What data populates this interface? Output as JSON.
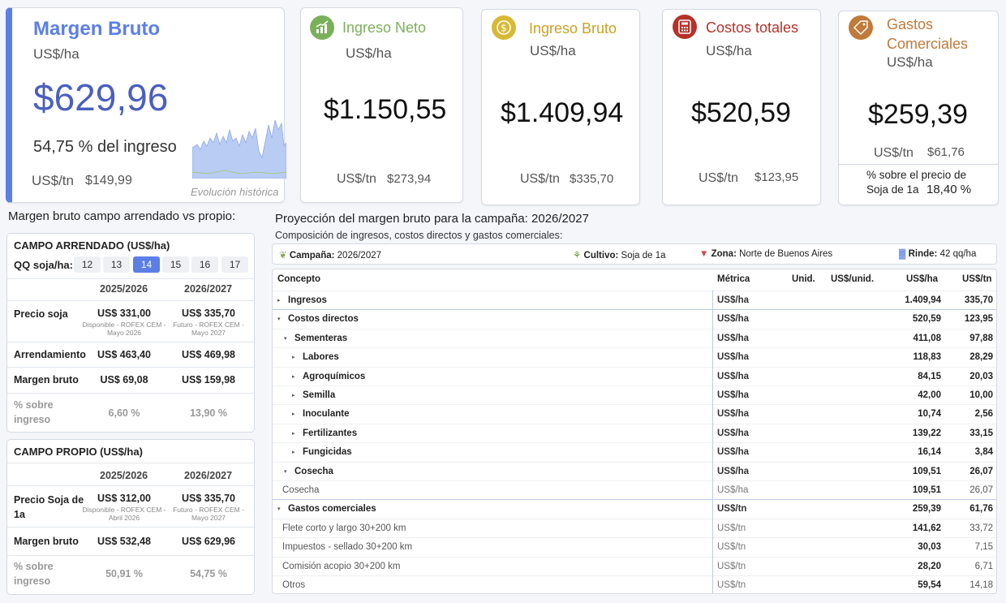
{
  "margen_bruto": {
    "title": "Margen Bruto",
    "unit": "US$/ha",
    "value": "$629,96",
    "pct": "54,75 % del ingreso",
    "tn_label": "US$/tn",
    "tn_value": "$149,99",
    "evolucion": "Evolución histórica",
    "accent": "#5b7fe6"
  },
  "kpis": [
    {
      "title": "Ingreso Neto",
      "unit": "US$/ha",
      "value": "$1.150,55",
      "tn_label": "US$/tn",
      "tn_value": "$273,94",
      "color": "#7bb05a",
      "icon": "chart-up-icon"
    },
    {
      "title": "Ingreso Bruto",
      "unit": "US$/ha",
      "value": "$1.409,94",
      "tn_label": "US$/tn",
      "tn_value": "$335,70",
      "color": "#c9a227",
      "icon": "dollar-coin-icon"
    },
    {
      "title": "Costos totales",
      "unit": "US$/ha",
      "value": "$520,59",
      "tn_label": "US$/tn",
      "tn_value": "$123,95",
      "color": "#b43228",
      "icon": "calculator-icon"
    },
    {
      "title_line1": "Gastos",
      "title_line2": "Comerciales",
      "unit": "US$/ha",
      "value": "$259,39",
      "tn_label": "US$/tn",
      "tn_value": "$61,76",
      "color": "#c07a3a",
      "icon": "tag-icon",
      "pct_label_1": "% sobre el precio de",
      "pct_label_2": "Soja de 1a",
      "pct_value": "18,40 %"
    }
  ],
  "comparativo": {
    "title": "Margen bruto campo arrendado vs propio:",
    "arrendado": {
      "title": "CAMPO ARRENDADO (US$/ha)",
      "qq_label": "QQ soja/ha:",
      "qq_options": [
        "12",
        "13",
        "14",
        "15",
        "16",
        "17"
      ],
      "qq_selected": "14",
      "col1": "2025/2026",
      "col2": "2026/2027",
      "precio_label": "Precio soja",
      "precio_1": "US$ 331,00",
      "precio_1_sub": "Disponible - ROFEX CEM - Mayo 2026",
      "precio_2": "US$ 335,70",
      "precio_2_sub": "Futuro - ROFEX CEM - Mayo 2027",
      "arr_label": "Arrendamiento",
      "arr_1": "US$ 463,40",
      "arr_2": "US$ 469,98",
      "mb_label": "Margen bruto",
      "mb_1": "US$ 69,08",
      "mb_2": "US$ 159,98",
      "pct_label_1": "% sobre",
      "pct_label_2": "ingreso",
      "pct_1": "6,60 %",
      "pct_2": "13,90 %"
    },
    "propio": {
      "title": "CAMPO PROPIO (US$/ha)",
      "col1": "2025/2026",
      "col2": "2026/2027",
      "precio_label_1": "Precio Soja de",
      "precio_label_2": "1a",
      "precio_1": "US$ 312,00",
      "precio_1_sub": "Disponible - ROFEX CEM - Abril 2026",
      "precio_2": "US$ 335,70",
      "precio_2_sub": "Futuro - ROFEX CEM - Mayo 2027",
      "mb_label": "Margen bruto",
      "mb_1": "US$ 532,48",
      "mb_2": "US$ 629,96",
      "pct_label_1": "% sobre",
      "pct_label_2": "ingreso",
      "pct_1": "50,91 %",
      "pct_2": "54,75 %"
    }
  },
  "proyeccion": {
    "title": "Proyección del margen bruto para la campaña: 2026/2027",
    "subtitle": "Composición de ingresos, costos directos y gastos comerciales:",
    "filters": {
      "campana_label": "Campaña:",
      "campana": "2026/2027",
      "cultivo_label": "Cultivo:",
      "cultivo": "Soja de 1a",
      "zona_label": "Zona:",
      "zona": "Norte de Buenos Aires",
      "rinde_label": "Rinde:",
      "rinde": "42 qq/ha"
    },
    "headers": {
      "concepto": "Concepto",
      "metrica": "Métrica",
      "unid": "Unid.",
      "usd_unid": "US$/unid.",
      "usd_ha": "US$/ha",
      "usd_tn": "US$/tn"
    },
    "rows": [
      {
        "label": "Ingresos",
        "metric": "US$/ha",
        "ha": "1.409,94",
        "tn": "335,70",
        "level": 0,
        "tri": "▸",
        "bold": true
      },
      {
        "label": "Costos directos",
        "metric": "US$/ha",
        "ha": "520,59",
        "tn": "123,95",
        "level": 0,
        "tri": "▾",
        "bold": true
      },
      {
        "label": "Sementeras",
        "metric": "US$/ha",
        "ha": "411,08",
        "tn": "97,88",
        "level": 1,
        "tri": "▾",
        "bold": true
      },
      {
        "label": "Labores",
        "metric": "US$/ha",
        "ha": "118,83",
        "tn": "28,29",
        "level": 2,
        "tri": "▸",
        "bold": true
      },
      {
        "label": "Agroquímicos",
        "metric": "US$/ha",
        "ha": "84,15",
        "tn": "20,03",
        "level": 2,
        "tri": "▸",
        "bold": true
      },
      {
        "label": "Semilla",
        "metric": "US$/ha",
        "ha": "42,00",
        "tn": "10,00",
        "level": 2,
        "tri": "▸",
        "bold": true
      },
      {
        "label": "Inoculante",
        "metric": "US$/ha",
        "ha": "10,74",
        "tn": "2,56",
        "level": 2,
        "tri": "▸",
        "bold": true
      },
      {
        "label": "Fertilizantes",
        "metric": "US$/ha",
        "ha": "139,22",
        "tn": "33,15",
        "level": 2,
        "tri": "▸",
        "bold": true
      },
      {
        "label": "Fungicidas",
        "metric": "US$/ha",
        "ha": "16,14",
        "tn": "3,84",
        "level": 2,
        "tri": "▸",
        "bold": true
      },
      {
        "label": "Cosecha",
        "metric": "US$/ha",
        "ha": "109,51",
        "tn": "26,07",
        "level": 1,
        "tri": "▾",
        "bold": true
      },
      {
        "label": "Cosecha",
        "metric": "US$/ha",
        "ha": "109,51",
        "tn": "26,07",
        "level": 3,
        "tri": "",
        "bold": false
      },
      {
        "label": "Gastos comerciales",
        "metric": "US$/tn",
        "ha": "259,39",
        "tn": "61,76",
        "level": 0,
        "tri": "▾",
        "bold": true
      },
      {
        "label": "Flete corto y largo 30+200 km",
        "metric": "US$/tn",
        "ha": "141,62",
        "tn": "33,72",
        "level": 3,
        "tri": "",
        "bold": false
      },
      {
        "label": "Impuestos - sellado 30+200 km",
        "metric": "US$/tn",
        "ha": "30,03",
        "tn": "7,15",
        "level": 3,
        "tri": "",
        "bold": false
      },
      {
        "label": "Comisión acopio 30+200 km",
        "metric": "US$/tn",
        "ha": "28,20",
        "tn": "6,71",
        "level": 3,
        "tri": "",
        "bold": false
      },
      {
        "label": "Otros",
        "metric": "US$/tn",
        "ha": "59,54",
        "tn": "14,18",
        "level": 3,
        "tri": "",
        "bold": false
      }
    ]
  }
}
